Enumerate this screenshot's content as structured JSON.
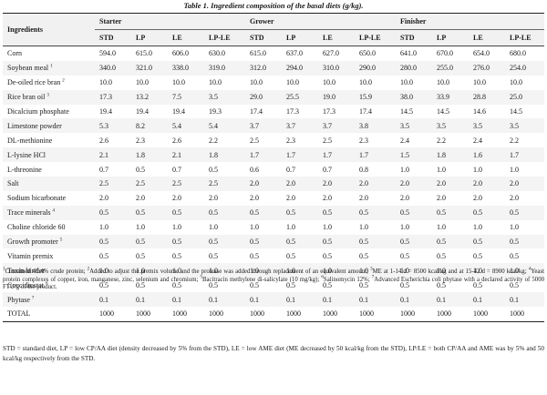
{
  "caption": "Table 1. Ingredient composition of the basal diets (g/kg).",
  "header": {
    "ingredients_label": "Ingredients",
    "groups": [
      "Starter",
      "Grower",
      "Finisher"
    ],
    "diets": [
      "STD",
      "LP",
      "LE",
      "LP-LE"
    ]
  },
  "rows": [
    {
      "name": "Corn",
      "sup": "",
      "values": [
        "594.0",
        "615.0",
        "606.0",
        "630.0",
        "615.0",
        "637.0",
        "627.0",
        "650.0",
        "641.0",
        "670.0",
        "654.0",
        "680.0"
      ]
    },
    {
      "name": "Soybean meal",
      "sup": "1",
      "values": [
        "340.0",
        "321.0",
        "338.0",
        "319.0",
        "312.0",
        "294.0",
        "310.0",
        "290.0",
        "280.0",
        "255.0",
        "276.0",
        "254.0"
      ]
    },
    {
      "name": "De-oiled rice bran",
      "sup": "2",
      "values": [
        "10.0",
        "10.0",
        "10.0",
        "10.0",
        "10.0",
        "10.0",
        "10.0",
        "10.0",
        "10.0",
        "10.0",
        "10.0",
        "10.0"
      ]
    },
    {
      "name": "Rice bran oil",
      "sup": "3",
      "values": [
        "17.3",
        "13.2",
        "7.5",
        "3.5",
        "29.0",
        "25.5",
        "19.0",
        "15.9",
        "38.0",
        "33.9",
        "28.8",
        "25.0"
      ]
    },
    {
      "name": "Dicalcium phosphate",
      "sup": "",
      "values": [
        "19.4",
        "19.4",
        "19.4",
        "19.3",
        "17.4",
        "17.3",
        "17.3",
        "17.4",
        "14.5",
        "14.5",
        "14.6",
        "14.5"
      ]
    },
    {
      "name": "Limestone powder",
      "sup": "",
      "values": [
        "5.3",
        "8.2",
        "5.4",
        "5.4",
        "3.7",
        "3.7",
        "3.7",
        "3.8",
        "3.5",
        "3.5",
        "3.5",
        "3.5"
      ]
    },
    {
      "name": "DL-methionine",
      "sup": "",
      "values": [
        "2.6",
        "2.3",
        "2.6",
        "2.2",
        "2.5",
        "2.3",
        "2.5",
        "2.3",
        "2.4",
        "2.2",
        "2.4",
        "2.2"
      ]
    },
    {
      "name": "L-lysine HCl",
      "sup": "",
      "values": [
        "2.1",
        "1.8",
        "2.1",
        "1.8",
        "1.7",
        "1.7",
        "1.7",
        "1.7",
        "1.5",
        "1.8",
        "1.6",
        "1.7"
      ]
    },
    {
      "name": "L-threonine",
      "sup": "",
      "values": [
        "0.7",
        "0.5",
        "0.7",
        "0.5",
        "0.6",
        "0.7",
        "0.7",
        "0.8",
        "1.0",
        "1.0",
        "1.0",
        "1.0"
      ]
    },
    {
      "name": "Salt",
      "sup": "",
      "values": [
        "2.5",
        "2.5",
        "2.5",
        "2.5",
        "2.0",
        "2.0",
        "2.0",
        "2.0",
        "2.0",
        "2.0",
        "2.0",
        "2.0"
      ]
    },
    {
      "name": "Sodium bicarbonate",
      "sup": "",
      "values": [
        "2.0",
        "2.0",
        "2.0",
        "2.0",
        "2.0",
        "2.0",
        "2.0",
        "2.0",
        "2.0",
        "2.0",
        "2.0",
        "2.0"
      ]
    },
    {
      "name": "Trace minerals",
      "sup": "4",
      "values": [
        "0.5",
        "0.5",
        "0.5",
        "0.5",
        "0.5",
        "0.5",
        "0.5",
        "0.5",
        "0.5",
        "0.5",
        "0.5",
        "0.5"
      ]
    },
    {
      "name": "Choline chloride 60",
      "sup": "",
      "values": [
        "1.0",
        "1.0",
        "1.0",
        "1.0",
        "1.0",
        "1.0",
        "1.0",
        "1.0",
        "1.0",
        "1.0",
        "1.0",
        "1.0"
      ]
    },
    {
      "name": "Growth promoter",
      "sup": "5",
      "values": [
        "0.5",
        "0.5",
        "0.5",
        "0.5",
        "0.5",
        "0.5",
        "0.5",
        "0.5",
        "0.5",
        "0.5",
        "0.5",
        "0.5"
      ]
    },
    {
      "name": "Vitamin premix",
      "sup": "",
      "values": [
        "0.5",
        "0.5",
        "0.5",
        "0.5",
        "0.5",
        "0.5",
        "0.5",
        "0.5",
        "0.5",
        "0.5",
        "0.5",
        "0.5"
      ]
    },
    {
      "name": "Toxin binder",
      "sup": "",
      "values": [
        "1.0",
        "1.0",
        "1.0",
        "1.0",
        "1.0",
        "1.0",
        "1.0",
        "1.0",
        "1.0",
        "1.0",
        "1.0",
        "1.0"
      ]
    },
    {
      "name": "Coccidiostat",
      "sup": "6",
      "values": [
        "0.5",
        "0.5",
        "0.5",
        "0.5",
        "0.5",
        "0.5",
        "0.5",
        "0.5",
        "0.5",
        "0.5",
        "0.5",
        "0.5"
      ]
    },
    {
      "name": "Phytase",
      "sup": "7",
      "values": [
        "0.1",
        "0.1",
        "0.1",
        "0.1",
        "0.1",
        "0.1",
        "0.1",
        "0.1",
        "0.1",
        "0.1",
        "0.1",
        "0.1"
      ]
    },
    {
      "name": "TOTAL",
      "sup": "",
      "values": [
        "1000",
        "1000",
        "1000",
        "1000",
        "1000",
        "1000",
        "1000",
        "1000",
        "1000",
        "1000",
        "1000",
        "1000"
      ]
    }
  ],
  "footnotes": {
    "f1_sup": "1",
    "f1": "Contained 49.4% crude protein; ",
    "f2_sup": "2",
    "f2": "Added to adjust the premix volume and the protease was added through replacement of an equivalent amount; ",
    "f3_sup": "3",
    "f3": "ME at 1-14 d = 8500 kcal/kg and at 15-42 d = 8900 kcal/kg; ",
    "f4_sup": "4",
    "f4": "Yeast protein complexes of copper, iron, manganese, zinc, selenium and chromium; ",
    "f5_sup": "5",
    "f5": "Bacitracin methylene di-salicylate (10 mg/kg); ",
    "f6_sup": "6",
    "f6": "Salinomycin 12%; ",
    "f7_sup": "7",
    "f7": "Advanced Escherichia coli phytase with a declared activity of 5000 FTU/g of the product."
  },
  "abbreviations": "STD = standard diet, LP = low CP/AA diet (density decreased by 5% from the STD), LE = low AME diet (ME decreased by 50 kcal/kg from the STD), LP/LE = both CP/AA and AME was by 5% and 50 kcal/kg respectively from the STD."
}
